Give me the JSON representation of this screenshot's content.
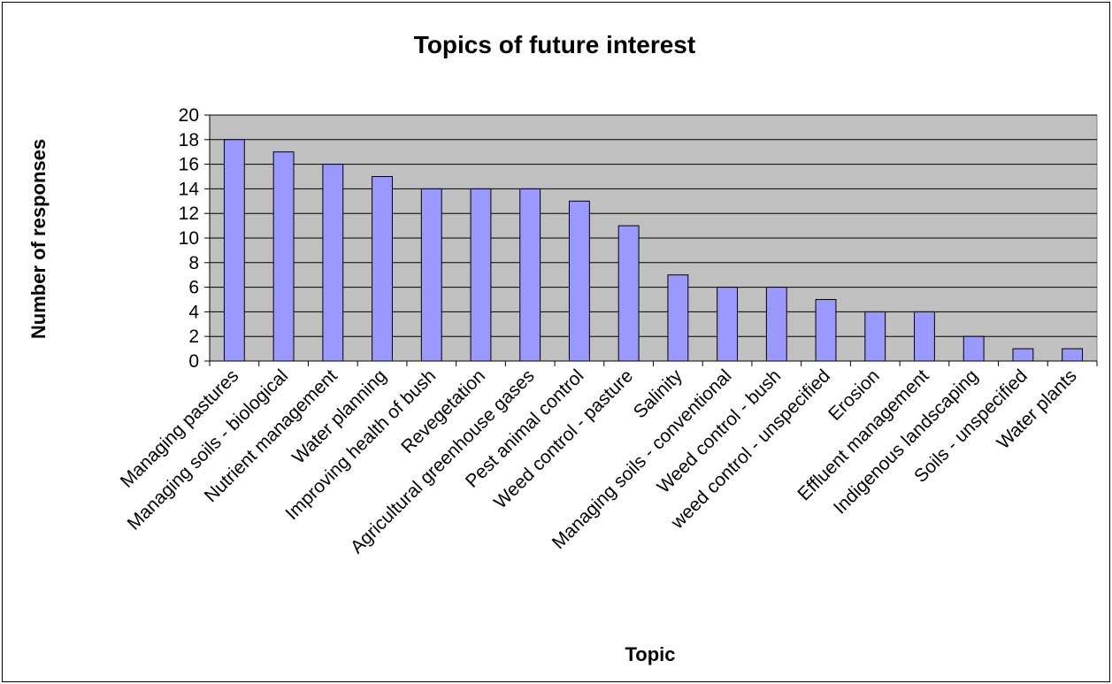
{
  "chart_data": {
    "type": "bar",
    "title": "Topics of future interest",
    "xlabel": "Topic",
    "ylabel": "Number of responses",
    "ylim": [
      0,
      20
    ],
    "ytick_step": 2,
    "grid": true,
    "plot_background": "#c0c0c0",
    "bar_color": "#9999ff",
    "categories": [
      "Managing pastures",
      "Managing soils - biological",
      "Nutrient management",
      "Water planning",
      "Improving health of bush",
      "Revegetation",
      "Agricultural greenhouse gases",
      "Pest animal control",
      "Weed control - pasture",
      "Salinity",
      "Managing soils - conventional",
      "Weed control - bush",
      "weed control - unspecified",
      "Erosion",
      "Effluent management",
      "Indigenous landscaping",
      "Soils - unspecified",
      "Water plants"
    ],
    "values": [
      18,
      17,
      16,
      15,
      14,
      14,
      14,
      13,
      11,
      7,
      6,
      6,
      5,
      4,
      4,
      2,
      1,
      1
    ]
  }
}
